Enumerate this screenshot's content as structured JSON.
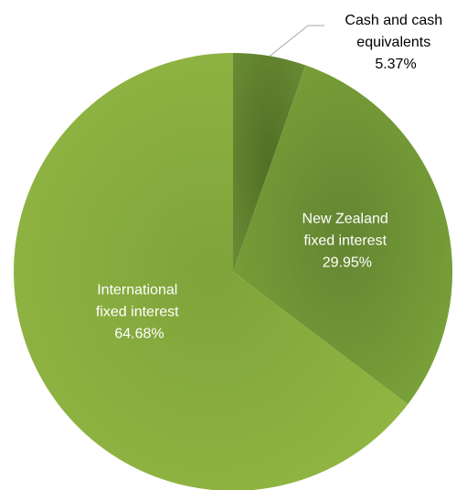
{
  "chart_data": {
    "type": "pie",
    "start_angle_deg": 0,
    "direction": "clockwise",
    "slices": [
      {
        "lines": [
          "Cash and cash",
          "equivalents"
        ],
        "value_label": "5.37%",
        "value": 5.37,
        "color": "#5f7f2e",
        "label_position": "outside-top-right",
        "label_color": "#000000"
      },
      {
        "lines": [
          "New Zealand",
          "fixed interest"
        ],
        "value_label": "29.95%",
        "value": 29.95,
        "color": "#749936",
        "label_position": "inside",
        "label_color": "#ffffff"
      },
      {
        "lines": [
          "International",
          "fixed interest"
        ],
        "value_label": "64.68%",
        "value": 64.68,
        "color": "#8db33e",
        "label_position": "inside",
        "label_color": "#ffffff"
      }
    ]
  }
}
